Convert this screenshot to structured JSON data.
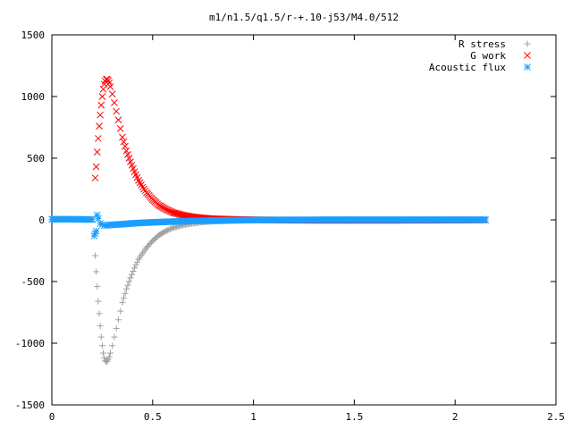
{
  "chart_data": {
    "type": "scatter",
    "title": "m1/n1.5/q1.5/r-+.10-j53/M4.0/512",
    "xlabel": "",
    "ylabel": "",
    "xlim": [
      0,
      2.5
    ],
    "ylim": [
      -1500,
      1500
    ],
    "x_ticks": [
      "0",
      "0.5",
      "1",
      "1.5",
      "2",
      "2.5"
    ],
    "y_ticks": [
      "1500",
      "1000",
      "500",
      "0",
      "-500",
      "-1000",
      "-1500"
    ],
    "grid": false,
    "legend_position": "top-right",
    "series": [
      {
        "name": "R stress",
        "marker": "+",
        "color": "#a0a0a0",
        "x": [
          0.215,
          0.22,
          0.225,
          0.23,
          0.235,
          0.24,
          0.245,
          0.25,
          0.255,
          0.26,
          0.265,
          0.27,
          0.275,
          0.28,
          0.285,
          0.29,
          0.3,
          0.31,
          0.32,
          0.33,
          0.34,
          0.35,
          0.37,
          0.39,
          0.41,
          0.43,
          0.45,
          0.47,
          0.5,
          0.53,
          0.56,
          0.6,
          0.65,
          0.7,
          0.75,
          0.8,
          0.9,
          1.0,
          1.2,
          1.4,
          1.6,
          1.8,
          2.0,
          2.15
        ],
        "y": [
          -290,
          -420,
          -540,
          -660,
          -760,
          -860,
          -950,
          -1020,
          -1080,
          -1120,
          -1140,
          -1150,
          -1145,
          -1130,
          -1110,
          -1080,
          -1020,
          -950,
          -880,
          -810,
          -740,
          -670,
          -560,
          -470,
          -390,
          -320,
          -270,
          -225,
          -170,
          -125,
          -95,
          -65,
          -42,
          -27,
          -18,
          -12,
          -6,
          -3,
          -1,
          0,
          0,
          0,
          0,
          0
        ]
      },
      {
        "name": "G work",
        "marker": "x",
        "color": "#ff0000",
        "x": [
          0.215,
          0.22,
          0.225,
          0.23,
          0.235,
          0.24,
          0.245,
          0.25,
          0.255,
          0.26,
          0.265,
          0.27,
          0.275,
          0.28,
          0.285,
          0.29,
          0.3,
          0.31,
          0.32,
          0.33,
          0.34,
          0.35,
          0.37,
          0.39,
          0.41,
          0.43,
          0.45,
          0.47,
          0.5,
          0.53,
          0.56,
          0.6,
          0.65,
          0.7,
          0.75,
          0.8,
          0.9,
          1.0,
          1.2,
          1.4,
          1.6,
          1.8,
          2.0,
          2.15
        ],
        "y": [
          340,
          430,
          550,
          660,
          760,
          850,
          930,
          1000,
          1060,
          1100,
          1125,
          1140,
          1140,
          1130,
          1110,
          1080,
          1020,
          950,
          880,
          810,
          740,
          670,
          560,
          470,
          390,
          320,
          265,
          220,
          165,
          120,
          90,
          60,
          38,
          24,
          15,
          9,
          4,
          1,
          -3,
          -4,
          -4,
          -3,
          -2,
          -1
        ]
      },
      {
        "name": "Acoustic flux",
        "marker": "*",
        "color": "#1a9fff",
        "x": [
          0.0,
          0.05,
          0.1,
          0.15,
          0.2,
          0.21,
          0.215,
          0.22,
          0.225,
          0.23,
          0.24,
          0.25,
          0.26,
          0.27,
          0.28,
          0.3,
          0.35,
          0.4,
          0.5,
          0.6,
          0.7,
          0.8,
          0.9,
          1.0,
          1.2,
          1.4,
          1.6,
          1.8,
          2.0,
          2.15
        ],
        "y": [
          5,
          5,
          5,
          4,
          3,
          -130,
          -110,
          -90,
          40,
          10,
          -30,
          -40,
          -45,
          -45,
          -43,
          -40,
          -35,
          -28,
          -20,
          -14,
          -9,
          -6,
          -3,
          -1,
          0,
          1,
          1,
          1,
          1,
          1
        ]
      }
    ]
  }
}
